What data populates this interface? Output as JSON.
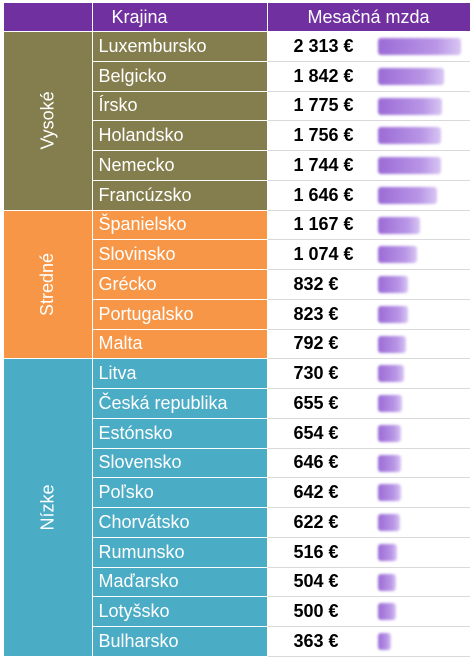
{
  "header": {
    "country_label": "Krajina",
    "wage_label": "Mesačná mzda"
  },
  "colors": {
    "header": "#7030A0",
    "tiers": [
      "#847E4E",
      "#F79646",
      "#4BACC6"
    ],
    "bar": "#9b6bd6"
  },
  "max_value": 2313,
  "tiers": [
    {
      "name": "Vysoké",
      "rows": [
        {
          "country": "Luxembursko",
          "wage": "2 313 €",
          "value": 2313
        },
        {
          "country": "Belgicko",
          "wage": "1 842 €",
          "value": 1842
        },
        {
          "country": "Írsko",
          "wage": "1 775 €",
          "value": 1775
        },
        {
          "country": "Holandsko",
          "wage": "1 756 €",
          "value": 1756
        },
        {
          "country": "Nemecko",
          "wage": "1 744 €",
          "value": 1744
        },
        {
          "country": "Francúzsko",
          "wage": "1 646 €",
          "value": 1646
        }
      ]
    },
    {
      "name": "Stredné",
      "rows": [
        {
          "country": "Španielsko",
          "wage": "1 167 €",
          "value": 1167
        },
        {
          "country": "Slovinsko",
          "wage": "1 074 €",
          "value": 1074
        },
        {
          "country": "Grécko",
          "wage": "832 €",
          "value": 832
        },
        {
          "country": "Portugalsko",
          "wage": "823 €",
          "value": 823
        },
        {
          "country": "Malta",
          "wage": "792 €",
          "value": 792
        }
      ]
    },
    {
      "name": "Nízke",
      "rows": [
        {
          "country": "Litva",
          "wage": "730 €",
          "value": 730
        },
        {
          "country": "Česká republika",
          "wage": "655 €",
          "value": 655
        },
        {
          "country": "Estónsko",
          "wage": "654 €",
          "value": 654
        },
        {
          "country": "Slovensko",
          "wage": "646 €",
          "value": 646
        },
        {
          "country": "Poľsko",
          "wage": "642 €",
          "value": 642
        },
        {
          "country": "Chorvátsko",
          "wage": "622 €",
          "value": 622
        },
        {
          "country": "Rumunsko",
          "wage": "516 €",
          "value": 516
        },
        {
          "country": "Maďarsko",
          "wage": "504 €",
          "value": 504
        },
        {
          "country": "Lotyšsko",
          "wage": "500 €",
          "value": 500
        },
        {
          "country": "Bulharsko",
          "wage": "363 €",
          "value": 363
        }
      ]
    }
  ]
}
